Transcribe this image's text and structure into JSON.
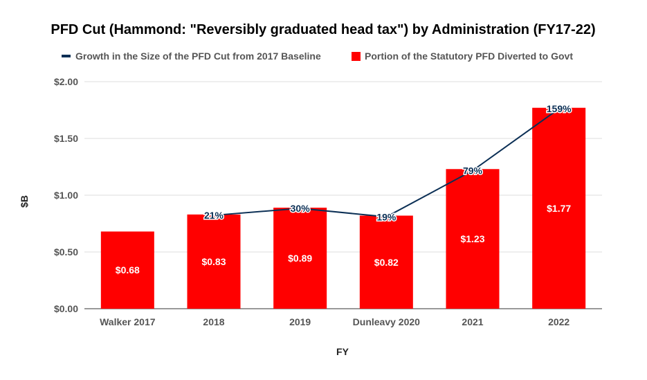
{
  "chart_data": {
    "type": "bar",
    "title": "PFD Cut (Hammond: \"Reversibly graduated head tax\") by Administration (FY17-22)",
    "xlabel": "FY",
    "ylabel": "$B",
    "categories": [
      "Walker 2017",
      "2018",
      "2019",
      "Dunleavy 2020",
      "2021",
      "2022"
    ],
    "ylim": [
      0,
      2.0
    ],
    "yticks": [
      "$0.00",
      "$0.50",
      "$1.00",
      "$1.50",
      "$2.00"
    ],
    "ytick_values": [
      0,
      0.5,
      1.0,
      1.5,
      2.0
    ],
    "grid": true,
    "legend_position": "top",
    "series": [
      {
        "name": "Portion of the Statutory PFD Diverted to Govt",
        "kind": "bar",
        "color": "#ff0000",
        "values": [
          0.68,
          0.83,
          0.89,
          0.82,
          1.23,
          1.77
        ],
        "labels": [
          "$0.68",
          "$0.83",
          "$0.89",
          "$0.82",
          "$1.23",
          "$1.77"
        ]
      },
      {
        "name": "Growth in the Size of the PFD Cut from 2017 Baseline",
        "kind": "line",
        "color": "#0b2f55",
        "values": [
          null,
          21,
          30,
          19,
          79,
          159
        ],
        "labels": [
          "",
          "21%",
          "30%",
          "19%",
          "79%",
          "159%"
        ]
      }
    ]
  }
}
